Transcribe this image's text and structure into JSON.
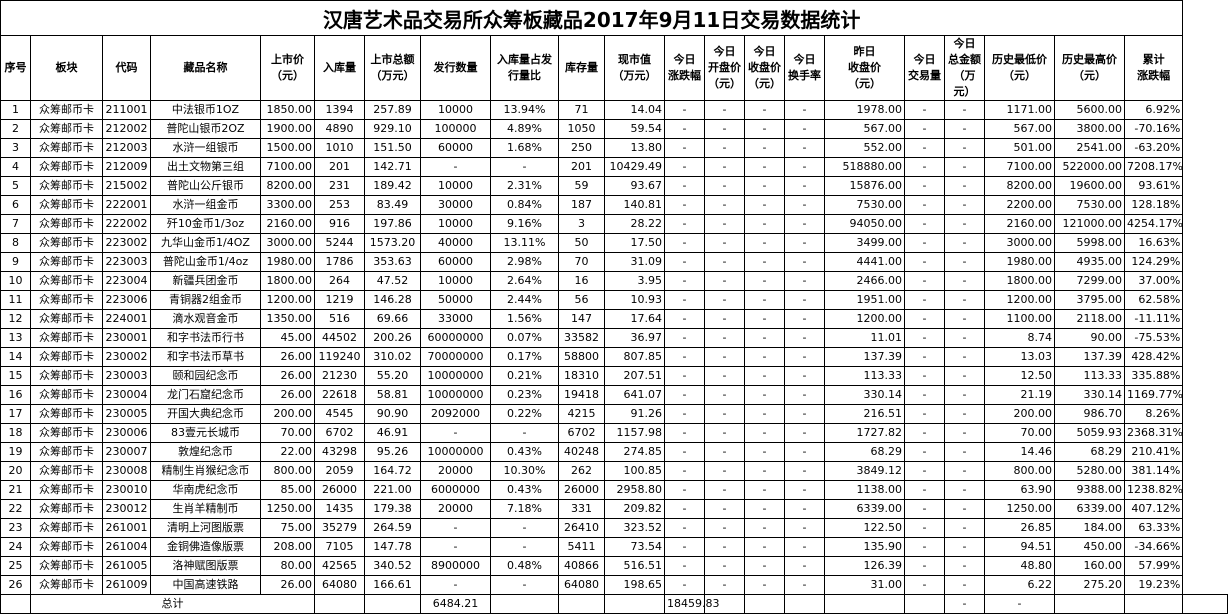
{
  "title": "汉唐艺术品交易所众筹板藏品2017年9月11日交易数据统计",
  "headers": [
    "序号",
    "板块",
    "代码",
    "藏品名称",
    "上市价\n（元）",
    "入库量",
    "上市总额\n（万元）",
    "发行数量",
    "入库量占发\n行量比",
    "库存量",
    "现市值\n（万元）",
    "今日\n涨跌幅",
    "今日\n开盘价\n（元）",
    "今日\n收盘价\n（元）",
    "今日\n换手率",
    "昨日\n收盘价\n（元）",
    "今日\n交易量",
    "今日\n总金额\n（万元）",
    "历史最低价\n（元）",
    "历史最高价\n（元）",
    "累计\n涨跌幅"
  ],
  "rows": [
    [
      "1",
      "众筹邮币卡",
      "211001",
      "中法银币1OZ",
      "1850.00",
      "1394",
      "257.89",
      "10000",
      "13.94%",
      "71",
      "14.04",
      "-",
      "-",
      "-",
      "-",
      "1978.00",
      "-",
      "-",
      "1171.00",
      "5600.00",
      "6.92%"
    ],
    [
      "2",
      "众筹邮币卡",
      "212002",
      "普陀山银币2OZ",
      "1900.00",
      "4890",
      "929.10",
      "100000",
      "4.89%",
      "1050",
      "59.54",
      "-",
      "-",
      "-",
      "-",
      "567.00",
      "-",
      "-",
      "567.00",
      "3800.00",
      "-70.16%"
    ],
    [
      "3",
      "众筹邮币卡",
      "212003",
      "水浒一组银币",
      "1500.00",
      "1010",
      "151.50",
      "60000",
      "1.68%",
      "250",
      "13.80",
      "-",
      "-",
      "-",
      "-",
      "552.00",
      "-",
      "-",
      "501.00",
      "2541.00",
      "-63.20%"
    ],
    [
      "4",
      "众筹邮币卡",
      "212009",
      "出土文物第三组",
      "7100.00",
      "201",
      "142.71",
      "-",
      "-",
      "201",
      "10429.49",
      "-",
      "-",
      "-",
      "-",
      "518880.00",
      "-",
      "-",
      "7100.00",
      "522000.00",
      "7208.17%"
    ],
    [
      "5",
      "众筹邮币卡",
      "215002",
      "普陀山公斤银币",
      "8200.00",
      "231",
      "189.42",
      "10000",
      "2.31%",
      "59",
      "93.67",
      "-",
      "-",
      "-",
      "-",
      "15876.00",
      "-",
      "-",
      "8200.00",
      "19600.00",
      "93.61%"
    ],
    [
      "6",
      "众筹邮币卡",
      "222001",
      "水浒一组金币",
      "3300.00",
      "253",
      "83.49",
      "30000",
      "0.84%",
      "187",
      "140.81",
      "-",
      "-",
      "-",
      "-",
      "7530.00",
      "-",
      "-",
      "2200.00",
      "7530.00",
      "128.18%"
    ],
    [
      "7",
      "众筹邮币卡",
      "222002",
      "歼10金币1/3oz",
      "2160.00",
      "916",
      "197.86",
      "10000",
      "9.16%",
      "3",
      "28.22",
      "-",
      "-",
      "-",
      "-",
      "94050.00",
      "-",
      "-",
      "2160.00",
      "121000.00",
      "4254.17%"
    ],
    [
      "8",
      "众筹邮币卡",
      "223002",
      "九华山金币1/4OZ",
      "3000.00",
      "5244",
      "1573.20",
      "40000",
      "13.11%",
      "50",
      "17.50",
      "-",
      "-",
      "-",
      "-",
      "3499.00",
      "-",
      "-",
      "3000.00",
      "5998.00",
      "16.63%"
    ],
    [
      "9",
      "众筹邮币卡",
      "223003",
      "普陀山金币1/4oz",
      "1980.00",
      "1786",
      "353.63",
      "60000",
      "2.98%",
      "70",
      "31.09",
      "-",
      "-",
      "-",
      "-",
      "4441.00",
      "-",
      "-",
      "1980.00",
      "4935.00",
      "124.29%"
    ],
    [
      "10",
      "众筹邮币卡",
      "223004",
      "新疆兵团金币",
      "1800.00",
      "264",
      "47.52",
      "10000",
      "2.64%",
      "16",
      "3.95",
      "-",
      "-",
      "-",
      "-",
      "2466.00",
      "-",
      "-",
      "1800.00",
      "7299.00",
      "37.00%"
    ],
    [
      "11",
      "众筹邮币卡",
      "223006",
      "青铜器2组金币",
      "1200.00",
      "1219",
      "146.28",
      "50000",
      "2.44%",
      "56",
      "10.93",
      "-",
      "-",
      "-",
      "-",
      "1951.00",
      "-",
      "-",
      "1200.00",
      "3795.00",
      "62.58%"
    ],
    [
      "12",
      "众筹邮币卡",
      "224001",
      "滴水观音金币",
      "1350.00",
      "516",
      "69.66",
      "33000",
      "1.56%",
      "147",
      "17.64",
      "-",
      "-",
      "-",
      "-",
      "1200.00",
      "-",
      "-",
      "1100.00",
      "2118.00",
      "-11.11%"
    ],
    [
      "13",
      "众筹邮币卡",
      "230001",
      "和字书法币行书",
      "45.00",
      "44502",
      "200.26",
      "60000000",
      "0.07%",
      "33582",
      "36.97",
      "-",
      "-",
      "-",
      "-",
      "11.01",
      "-",
      "-",
      "8.74",
      "90.00",
      "-75.53%"
    ],
    [
      "14",
      "众筹邮币卡",
      "230002",
      "和字书法币草书",
      "26.00",
      "119240",
      "310.02",
      "70000000",
      "0.17%",
      "58800",
      "807.85",
      "-",
      "-",
      "-",
      "-",
      "137.39",
      "-",
      "-",
      "13.03",
      "137.39",
      "428.42%"
    ],
    [
      "15",
      "众筹邮币卡",
      "230003",
      "颐和园纪念币",
      "26.00",
      "21230",
      "55.20",
      "10000000",
      "0.21%",
      "18310",
      "207.51",
      "-",
      "-",
      "-",
      "-",
      "113.33",
      "-",
      "-",
      "12.50",
      "113.33",
      "335.88%"
    ],
    [
      "16",
      "众筹邮币卡",
      "230004",
      "龙门石窟纪念币",
      "26.00",
      "22618",
      "58.81",
      "10000000",
      "0.23%",
      "19418",
      "641.07",
      "-",
      "-",
      "-",
      "-",
      "330.14",
      "-",
      "-",
      "21.19",
      "330.14",
      "1169.77%"
    ],
    [
      "17",
      "众筹邮币卡",
      "230005",
      "开国大典纪念币",
      "200.00",
      "4545",
      "90.90",
      "2092000",
      "0.22%",
      "4215",
      "91.26",
      "-",
      "-",
      "-",
      "-",
      "216.51",
      "-",
      "-",
      "200.00",
      "986.70",
      "8.26%"
    ],
    [
      "18",
      "众筹邮币卡",
      "230006",
      "83壹元长城币",
      "70.00",
      "6702",
      "46.91",
      "-",
      "-",
      "6702",
      "1157.98",
      "-",
      "-",
      "-",
      "-",
      "1727.82",
      "-",
      "-",
      "70.00",
      "5059.93",
      "2368.31%"
    ],
    [
      "19",
      "众筹邮币卡",
      "230007",
      "敦煌纪念币",
      "22.00",
      "43298",
      "95.26",
      "10000000",
      "0.43%",
      "40248",
      "274.85",
      "-",
      "-",
      "-",
      "-",
      "68.29",
      "-",
      "-",
      "14.46",
      "68.29",
      "210.41%"
    ],
    [
      "20",
      "众筹邮币卡",
      "230008",
      "精制生肖猴纪念币",
      "800.00",
      "2059",
      "164.72",
      "20000",
      "10.30%",
      "262",
      "100.85",
      "-",
      "-",
      "-",
      "-",
      "3849.12",
      "-",
      "-",
      "800.00",
      "5280.00",
      "381.14%"
    ],
    [
      "21",
      "众筹邮币卡",
      "230010",
      "华南虎纪念币",
      "85.00",
      "26000",
      "221.00",
      "6000000",
      "0.43%",
      "26000",
      "2958.80",
      "-",
      "-",
      "-",
      "-",
      "1138.00",
      "-",
      "-",
      "63.90",
      "9388.00",
      "1238.82%"
    ],
    [
      "22",
      "众筹邮币卡",
      "230012",
      "生肖羊精制币",
      "1250.00",
      "1435",
      "179.38",
      "20000",
      "7.18%",
      "331",
      "209.82",
      "-",
      "-",
      "-",
      "-",
      "6339.00",
      "-",
      "-",
      "1250.00",
      "6339.00",
      "407.12%"
    ],
    [
      "23",
      "众筹邮币卡",
      "261001",
      "清明上河图版票",
      "75.00",
      "35279",
      "264.59",
      "-",
      "-",
      "26410",
      "323.52",
      "-",
      "-",
      "-",
      "-",
      "122.50",
      "-",
      "-",
      "26.85",
      "184.00",
      "63.33%"
    ],
    [
      "24",
      "众筹邮币卡",
      "261004",
      "金铜佛造像版票",
      "208.00",
      "7105",
      "147.78",
      "-",
      "-",
      "5411",
      "73.54",
      "-",
      "-",
      "-",
      "-",
      "135.90",
      "-",
      "-",
      "94.51",
      "450.00",
      "-34.66%"
    ],
    [
      "25",
      "众筹邮币卡",
      "261005",
      "洛神赋图版票",
      "80.00",
      "42565",
      "340.52",
      "8900000",
      "0.48%",
      "40866",
      "516.51",
      "-",
      "-",
      "-",
      "-",
      "126.39",
      "-",
      "-",
      "48.80",
      "160.00",
      "57.99%"
    ],
    [
      "26",
      "众筹邮币卡",
      "261009",
      "中国高速铁路",
      "26.00",
      "64080",
      "166.61",
      "-",
      "-",
      "64080",
      "198.65",
      "-",
      "-",
      "-",
      "-",
      "31.00",
      "-",
      "-",
      "6.22",
      "275.20",
      "19.23%"
    ]
  ],
  "total": {
    "label": "总计",
    "listing_total": "6484.21",
    "market_value_total": "18459.83",
    "volume": "-",
    "amount": "-"
  }
}
